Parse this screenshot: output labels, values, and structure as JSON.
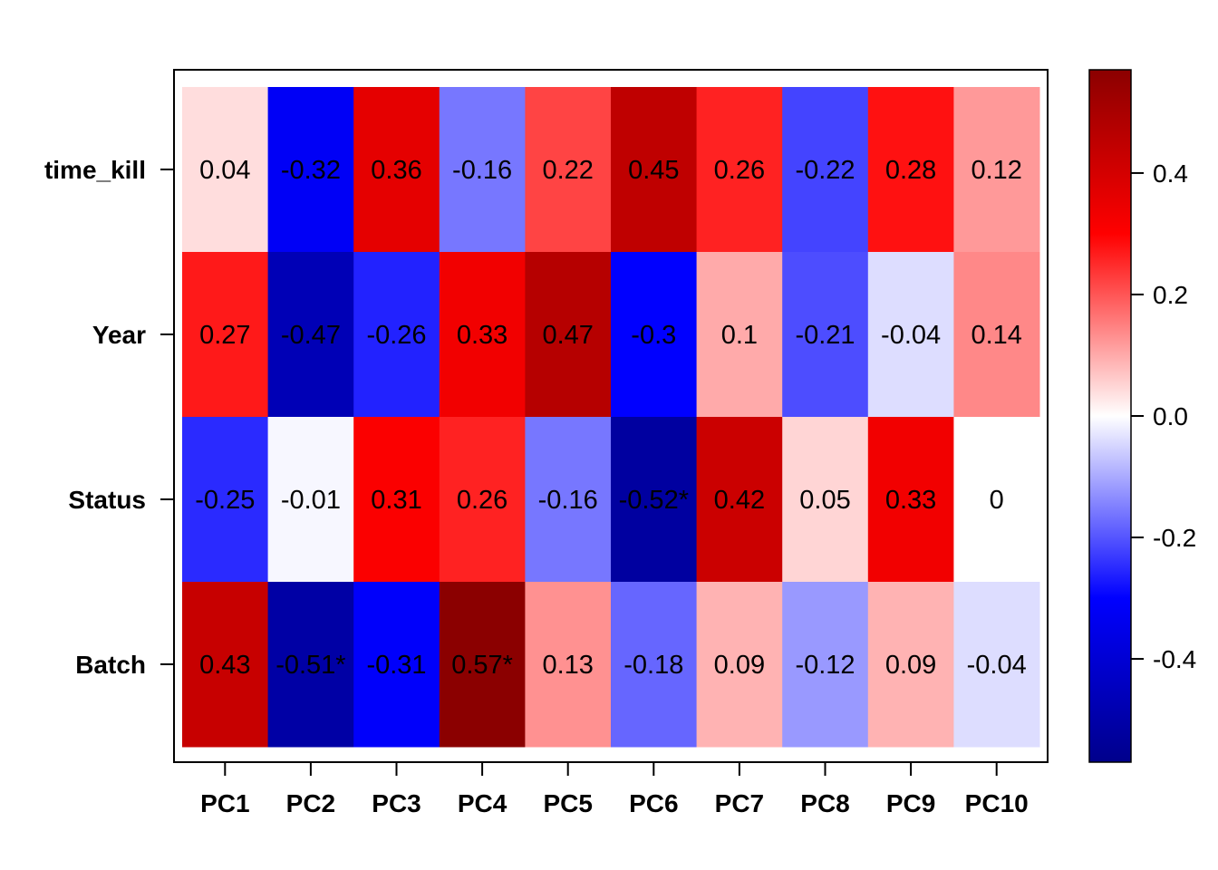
{
  "chart_data": {
    "type": "heatmap",
    "title": "",
    "xlabel": "",
    "ylabel": "",
    "rows": [
      "time_kill",
      "Year",
      "Status",
      "Batch"
    ],
    "columns": [
      "PC1",
      "PC2",
      "PC3",
      "PC4",
      "PC5",
      "PC6",
      "PC7",
      "PC8",
      "PC9",
      "PC10"
    ],
    "values": [
      [
        0.04,
        -0.32,
        0.36,
        -0.16,
        0.22,
        0.45,
        0.26,
        -0.22,
        0.28,
        0.12
      ],
      [
        0.27,
        -0.47,
        -0.26,
        0.33,
        0.47,
        -0.3,
        0.1,
        -0.21,
        -0.04,
        0.14
      ],
      [
        -0.25,
        -0.01,
        0.31,
        0.26,
        -0.16,
        -0.52,
        0.42,
        0.05,
        0.33,
        0
      ],
      [
        0.43,
        -0.51,
        -0.31,
        0.57,
        0.13,
        -0.18,
        0.09,
        -0.12,
        0.09,
        -0.04
      ]
    ],
    "labels": [
      [
        "0.04",
        "-0.32",
        "0.36",
        "-0.16",
        "0.22",
        "0.45",
        "0.26",
        "-0.22",
        "0.28",
        "0.12"
      ],
      [
        "0.27",
        "-0.47",
        "-0.26",
        "0.33",
        "0.47",
        "-0.3",
        "0.1",
        "-0.21",
        "-0.04",
        "0.14"
      ],
      [
        "-0.25",
        "-0.01",
        "0.31",
        "0.26",
        "-0.16",
        "-0.52*",
        "0.42",
        "0.05",
        "0.33",
        "0"
      ],
      [
        "0.43",
        "-0.51*",
        "-0.31",
        "0.57*",
        "0.13",
        "-0.18",
        "0.09",
        "-0.12",
        "0.09",
        "-0.04"
      ]
    ],
    "color_scale": {
      "range": [
        -0.57,
        0.57
      ],
      "ticks": [
        0.4,
        0.2,
        0.0,
        -0.2,
        -0.4
      ],
      "tick_labels": [
        "0.4",
        "0.2",
        "0.0",
        "-0.2",
        "-0.4"
      ],
      "stops": [
        {
          "value": -0.57,
          "color": "#00008B"
        },
        {
          "value": -0.3,
          "color": "#0000FF"
        },
        {
          "value": 0.0,
          "color": "#FFFFFF"
        },
        {
          "value": 0.3,
          "color": "#FF0000"
        },
        {
          "value": 0.57,
          "color": "#8B0000"
        }
      ]
    }
  }
}
